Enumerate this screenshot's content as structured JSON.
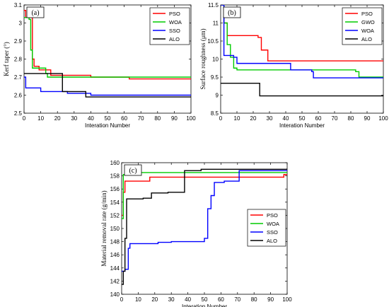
{
  "chart_data": [
    {
      "type": "line",
      "panel_label": "(a)",
      "xlabel": "Interation Number",
      "ylabel": "Kerf taper  (°)",
      "xlim": [
        0,
        100
      ],
      "ylim": [
        2.5,
        3.1
      ],
      "xticks": [
        0,
        10,
        20,
        30,
        40,
        50,
        60,
        70,
        80,
        90,
        100
      ],
      "yticks": [
        2.5,
        2.6,
        2.7,
        2.8,
        2.9,
        3.0,
        3.1
      ],
      "ytick_labels": [
        "2.5",
        "2.6",
        "2.7",
        "2.8",
        "2.9",
        "3",
        "3.1"
      ],
      "grid": false,
      "legend_position": "top-right",
      "series": [
        {
          "name": "PSO",
          "color": "#ff0000",
          "steps": [
            [
              0,
              3.07
            ],
            [
              1,
              3.03
            ],
            [
              5,
              2.8
            ],
            [
              6,
              2.76
            ],
            [
              9,
              2.74
            ],
            [
              16,
              2.71
            ],
            [
              40,
              2.7
            ],
            [
              63,
              2.69
            ],
            [
              100,
              2.69
            ]
          ]
        },
        {
          "name": "WOA",
          "color": "#00cc00",
          "steps": [
            [
              0,
              3.03
            ],
            [
              3,
              3.02
            ],
            [
              4,
              2.85
            ],
            [
              5,
              2.75
            ],
            [
              13,
              2.72
            ],
            [
              14,
              2.7
            ],
            [
              100,
              2.7
            ]
          ]
        },
        {
          "name": "SSO",
          "color": "#0000ff",
          "steps": [
            [
              0,
              2.7
            ],
            [
              1,
              2.64
            ],
            [
              10,
              2.62
            ],
            [
              26,
              2.61
            ],
            [
              40,
              2.6
            ],
            [
              100,
              2.6
            ]
          ]
        },
        {
          "name": "ALO",
          "color": "#000000",
          "steps": [
            [
              0,
              2.72
            ],
            [
              23,
              2.62
            ],
            [
              37,
              2.59
            ],
            [
              100,
              2.59
            ]
          ]
        }
      ]
    },
    {
      "type": "line",
      "panel_label": "(b)",
      "xlabel": "Interation Number",
      "ylabel": "Surface roughness  (μm)",
      "xlim": [
        0,
        100
      ],
      "ylim": [
        8.5,
        11.5
      ],
      "xticks": [
        0,
        10,
        20,
        30,
        40,
        50,
        60,
        70,
        80,
        90,
        100
      ],
      "yticks": [
        8.5,
        9,
        9.5,
        10,
        10.5,
        11,
        11.5
      ],
      "ytick_labels": [
        "8.5",
        "9",
        "9.5",
        "10",
        "10.5",
        "11",
        "11.5"
      ],
      "grid": false,
      "legend_position": "top-right",
      "series": [
        {
          "name": "PSO",
          "color": "#ff0000",
          "steps": [
            [
              0,
              11.5
            ],
            [
              2,
              11.0
            ],
            [
              4,
              10.65
            ],
            [
              23,
              10.6
            ],
            [
              25,
              10.25
            ],
            [
              29,
              9.95
            ],
            [
              100,
              9.95
            ]
          ]
        },
        {
          "name": "GWO",
          "color": "#00cc00",
          "steps": [
            [
              0,
              11.5
            ],
            [
              2,
              11.0
            ],
            [
              4,
              10.4
            ],
            [
              6,
              10.05
            ],
            [
              8,
              9.75
            ],
            [
              10,
              9.7
            ],
            [
              83,
              9.65
            ],
            [
              85,
              9.5
            ],
            [
              100,
              9.5
            ]
          ]
        },
        {
          "name": "WOA",
          "color": "#0000ff",
          "steps": [
            [
              0,
              11.5
            ],
            [
              2,
              10.1
            ],
            [
              8,
              10.05
            ],
            [
              10,
              9.88
            ],
            [
              43,
              9.7
            ],
            [
              56,
              9.65
            ],
            [
              57,
              9.48
            ],
            [
              100,
              9.48
            ]
          ]
        },
        {
          "name": "ALO",
          "color": "#000000",
          "steps": [
            [
              0,
              9.33
            ],
            [
              23,
              9.33
            ],
            [
              24,
              8.98
            ],
            [
              100,
              8.98
            ]
          ]
        }
      ]
    },
    {
      "type": "line",
      "panel_label": "(c)",
      "xlabel": "Interation Number",
      "ylabel": "Material removal rate (g/min)",
      "xlim": [
        0,
        100
      ],
      "ylim": [
        140,
        160
      ],
      "xticks": [
        0,
        10,
        20,
        30,
        40,
        50,
        60,
        70,
        80,
        90,
        100
      ],
      "yticks": [
        140,
        142,
        144,
        146,
        148,
        150,
        152,
        154,
        156,
        158,
        160
      ],
      "ytick_labels": [
        "140",
        "142",
        "144",
        "146",
        "148",
        "150",
        "152",
        "154",
        "156",
        "158",
        "160"
      ],
      "grid": false,
      "legend_position": "right",
      "series": [
        {
          "name": "PSO",
          "color": "#ff0000",
          "steps": [
            [
              0,
              152.0
            ],
            [
              1,
              155.5
            ],
            [
              2,
              157.2
            ],
            [
              17,
              157.8
            ],
            [
              60,
              157.8
            ],
            [
              98,
              158.2
            ],
            [
              100,
              158.2
            ]
          ]
        },
        {
          "name": "WOA",
          "color": "#00cc00",
          "steps": [
            [
              0,
              151.5
            ],
            [
              1,
              158.2
            ],
            [
              3,
              158.5
            ],
            [
              100,
              158.5
            ]
          ]
        },
        {
          "name": "SSO",
          "color": "#0000ff",
          "steps": [
            [
              0,
              143.5
            ],
            [
              2,
              143.8
            ],
            [
              4,
              147.0
            ],
            [
              5,
              147.7
            ],
            [
              22,
              147.9
            ],
            [
              30,
              148.0
            ],
            [
              50,
              148.5
            ],
            [
              52,
              153.0
            ],
            [
              54,
              155.0
            ],
            [
              56,
              157.0
            ],
            [
              62,
              157.2
            ],
            [
              71,
              158.8
            ],
            [
              100,
              158.8
            ]
          ]
        },
        {
          "name": "ALO",
          "color": "#000000",
          "steps": [
            [
              0,
              141.5
            ],
            [
              1,
              143.5
            ],
            [
              2,
              148.5
            ],
            [
              3,
              154.5
            ],
            [
              13,
              154.6
            ],
            [
              18,
              155.4
            ],
            [
              28,
              155.5
            ],
            [
              38,
              158.8
            ],
            [
              48,
              159.0
            ],
            [
              100,
              159.1
            ]
          ]
        }
      ]
    }
  ]
}
